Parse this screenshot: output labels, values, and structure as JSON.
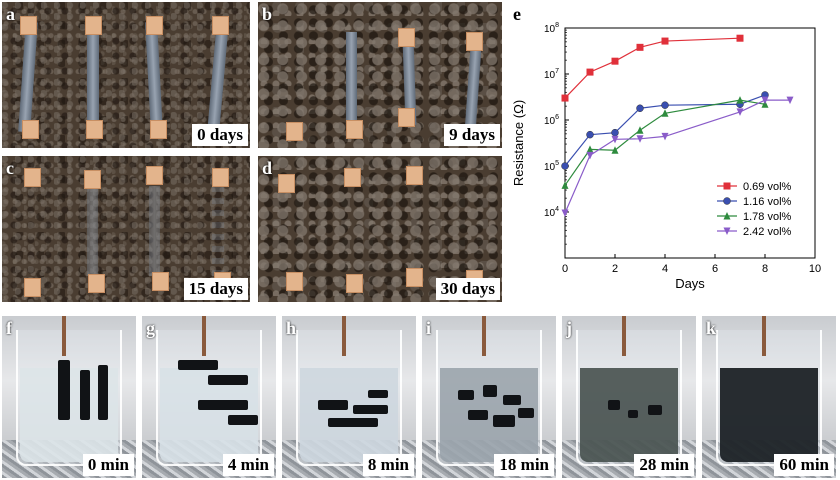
{
  "panels_top": [
    {
      "letter": "a",
      "time": "0 days"
    },
    {
      "letter": "b",
      "time": "9 days"
    },
    {
      "letter": "c",
      "time": "15 days"
    },
    {
      "letter": "d",
      "time": "30 days"
    }
  ],
  "panels_bottom": [
    {
      "letter": "f",
      "time": "0 min"
    },
    {
      "letter": "g",
      "time": "4 min"
    },
    {
      "letter": "h",
      "time": "8 min"
    },
    {
      "letter": "i",
      "time": "18 min"
    },
    {
      "letter": "j",
      "time": "28 min"
    },
    {
      "letter": "k",
      "time": "60 min"
    }
  ],
  "chart_data": {
    "type": "line",
    "panel_letter": "e",
    "xlabel": "Days",
    "ylabel": "Resistance (Ω)",
    "xlim": [
      0,
      10
    ],
    "ylim": [
      1000,
      100000000
    ],
    "yscale": "log",
    "xticks": [
      "0",
      "2",
      "4",
      "6",
      "8",
      "10"
    ],
    "yticks": [
      {
        "base": "10",
        "exp": "4",
        "value": 10000
      },
      {
        "base": "10",
        "exp": "5",
        "value": 100000
      },
      {
        "base": "10",
        "exp": "6",
        "value": 1000000
      },
      {
        "base": "10",
        "exp": "7",
        "value": 10000000
      },
      {
        "base": "10",
        "exp": "8",
        "value": 100000000
      }
    ],
    "legend_position": "bottom-right",
    "series": [
      {
        "name": "0.69 vol%",
        "color": "#e0303a",
        "marker": "square",
        "x": [
          0,
          1,
          2,
          3,
          4,
          7
        ],
        "y": [
          3000000,
          11000000,
          19000000,
          38000000,
          52000000,
          60000000
        ]
      },
      {
        "name": "1.16 vol%",
        "color": "#3a4fb0",
        "marker": "circle",
        "x": [
          0,
          1,
          2,
          3,
          4,
          7,
          8
        ],
        "y": [
          100000,
          480000,
          530000,
          1800000,
          2100000,
          2200000,
          3500000
        ]
      },
      {
        "name": "1.78 vol%",
        "color": "#2e8b3e",
        "marker": "triangle-up",
        "x": [
          0,
          1,
          2,
          3,
          4,
          7,
          8
        ],
        "y": [
          38000,
          230000,
          220000,
          600000,
          1400000,
          2700000,
          2200000
        ]
      },
      {
        "name": "2.42 vol%",
        "color": "#8a5cc9",
        "marker": "triangle-down",
        "x": [
          0,
          1,
          2,
          3,
          4,
          7,
          8,
          9
        ],
        "y": [
          9500,
          170000,
          380000,
          390000,
          440000,
          1500000,
          2700000,
          2700000
        ]
      }
    ]
  }
}
